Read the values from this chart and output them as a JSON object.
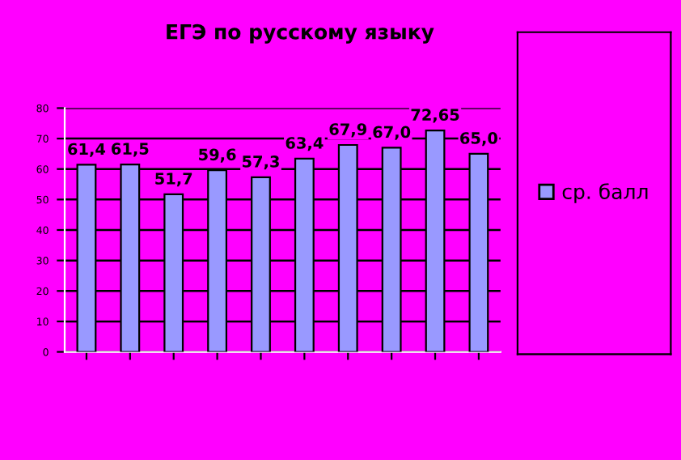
{
  "chart_data": {
    "type": "bar",
    "title": "ЕГЭ по русскому языку",
    "categories": [
      null,
      null,
      null,
      null,
      null,
      null,
      null,
      null,
      null,
      null
    ],
    "series": [
      {
        "name": "ср. балл",
        "color": "#9999ff",
        "values": [
          61.4,
          61.5,
          51.7,
          59.6,
          57.3,
          63.4,
          67.9,
          67.0,
          72.65,
          65.0
        ],
        "value_labels": [
          "61,4",
          "61,5",
          "51,7",
          "59,6",
          "57,3",
          "63,4",
          "67,9",
          "67,0",
          "72,65",
          "65,0"
        ]
      }
    ],
    "ylim": [
      0,
      80
    ],
    "yticks": [
      0,
      10,
      20,
      30,
      40,
      50,
      60,
      70,
      80
    ],
    "grid": "y",
    "legend": "right"
  }
}
